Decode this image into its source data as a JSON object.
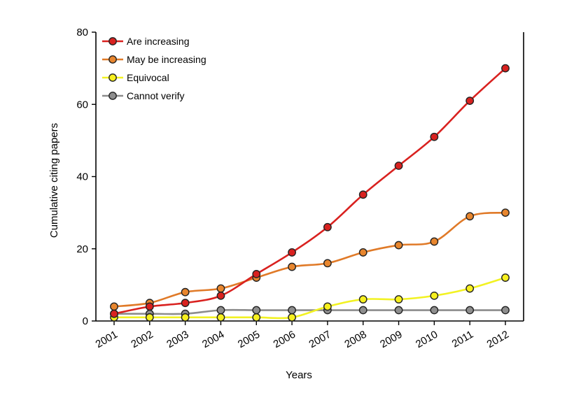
{
  "chart_data": {
    "type": "line",
    "xlabel": "Years",
    "ylabel": "Cumulative citing papers",
    "ylim": [
      0,
      80
    ],
    "yticks": [
      0,
      20,
      40,
      60,
      80
    ],
    "x": [
      "2001",
      "2002",
      "2003",
      "2004",
      "2005",
      "2006",
      "2007",
      "2008",
      "2009",
      "2010",
      "2011",
      "2012"
    ],
    "legend_position": "top-left",
    "grid": false,
    "series": [
      {
        "name": "Are increasing",
        "line_color": "#d9211f",
        "marker_color": "#d9211f",
        "values": [
          2,
          4,
          5,
          7,
          13,
          19,
          26,
          35,
          43,
          51,
          61,
          70
        ]
      },
      {
        "name": "May be increasing",
        "line_color": "#e07a28",
        "marker_color": "#e8862e",
        "values": [
          4,
          5,
          8,
          9,
          12,
          15,
          16,
          19,
          21,
          22,
          29,
          30
        ]
      },
      {
        "name": "Equivocal",
        "line_color": "#f2f222",
        "marker_color": "#f7f01e",
        "values": [
          1,
          1,
          1,
          1,
          1,
          1,
          4,
          6,
          6,
          7,
          9,
          12
        ]
      },
      {
        "name": "Cannot verify",
        "line_color": "#8c8c8c",
        "marker_color": "#8e8e8e",
        "values": [
          2,
          2,
          2,
          3,
          3,
          3,
          3,
          3,
          3,
          3,
          3,
          3
        ]
      }
    ]
  }
}
